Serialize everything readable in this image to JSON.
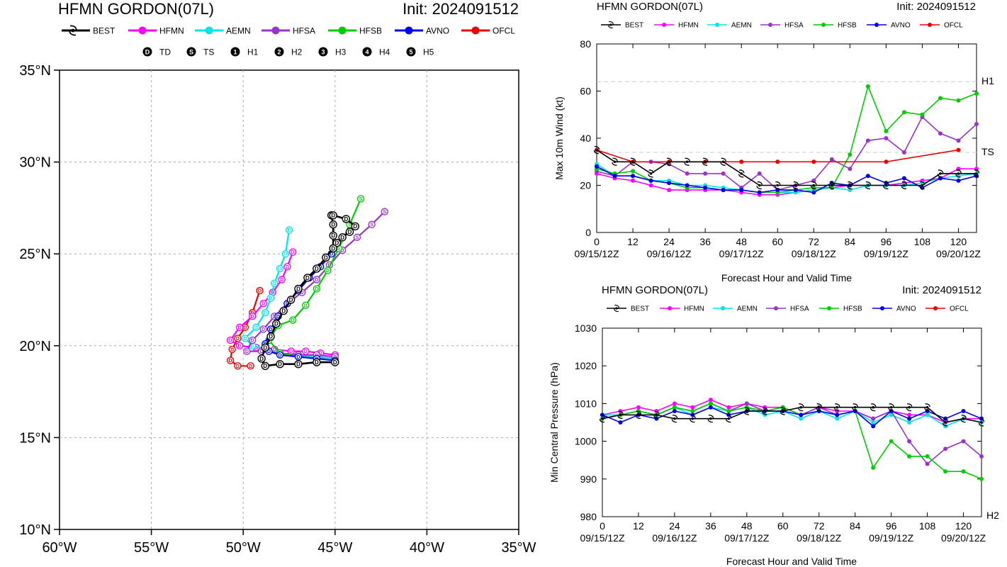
{
  "colors": {
    "BEST": "#000000",
    "HFMN": "#ff00ff",
    "AEMN": "#00e5e5",
    "HFSA": "#9933cc",
    "HFSB": "#00cc00",
    "AVNO": "#0000ee",
    "OFCL": "#ee0000"
  },
  "map": {
    "title": "HFMN GORDON(07L)",
    "init": "Init: 2024091512",
    "lat_labels": [
      "35°N",
      "30°N",
      "25°N",
      "20°N",
      "15°N",
      "10°N"
    ],
    "lon_labels": [
      "60°W",
      "55°W",
      "50°W",
      "45°W",
      "40°W",
      "35°W"
    ],
    "legend_models": [
      "BEST",
      "HFMN",
      "AEMN",
      "HFSA",
      "HFSB",
      "AVNO",
      "OFCL"
    ],
    "legend_categories": [
      {
        "symbol": "D",
        "label": "TD"
      },
      {
        "symbol": "S",
        "label": "TS"
      },
      {
        "symbol": "1",
        "label": "H1"
      },
      {
        "symbol": "2",
        "label": "H2"
      },
      {
        "symbol": "3",
        "label": "H3"
      },
      {
        "symbol": "4",
        "label": "H4"
      },
      {
        "symbol": "5",
        "label": "H5"
      }
    ]
  },
  "wind_panel": {
    "title": "HFMN GORDON(07L)",
    "init": "Init: 2024091512",
    "ylabel": "Max 10m Wind (kt)",
    "xlabel": "Forecast Hour and Valid Time",
    "threshold_labels": [
      "H1",
      "TS"
    ]
  },
  "pressure_panel": {
    "title": "HFMN GORDON(07L)",
    "init": "Init: 2024091512",
    "ylabel": "Min Central Pressure (hPa)",
    "xlabel": "Forecast Hour and Valid Time",
    "threshold_labels": [
      "H2"
    ]
  },
  "chart_data": [
    {
      "type": "line",
      "subtype": "track-map",
      "title": "HFMN GORDON(07L)",
      "xlim": [
        -60,
        -35
      ],
      "ylim": [
        10,
        35
      ],
      "grid": true,
      "series": [
        {
          "name": "BEST",
          "lon": [
            -45.0,
            -46.0,
            -47.0,
            -48.0,
            -48.8,
            -49.0,
            -48.8,
            -48.5,
            -48.2,
            -47.8,
            -47.4,
            -47.0,
            -46.5,
            -46.0,
            -45.5,
            -45.1,
            -45.1,
            -45.1,
            -45.2,
            -45.1,
            -44.4,
            -43.9,
            -44.2,
            -44.6,
            -44.9,
            -45.1
          ],
          "lat": [
            19.1,
            19.1,
            19.0,
            19.0,
            18.9,
            19.3,
            19.9,
            20.5,
            21.2,
            21.9,
            22.5,
            23.1,
            23.7,
            24.2,
            24.8,
            25.3,
            26.0,
            26.6,
            27.1,
            27.1,
            26.9,
            26.5,
            26.2,
            25.9,
            25.6,
            25.3
          ]
        },
        {
          "name": "HFMN",
          "lon": [
            -45.0,
            -45.8,
            -46.6,
            -47.4,
            -48.3,
            -49.3,
            -50.2,
            -50.7,
            -50.2,
            -49.5,
            -48.9,
            -48.4,
            -47.9,
            -47.6,
            -47.3
          ],
          "lat": [
            19.5,
            19.6,
            19.7,
            19.7,
            19.8,
            19.9,
            20.0,
            20.3,
            21.0,
            21.6,
            22.3,
            22.9,
            23.6,
            24.3,
            25.1
          ]
        },
        {
          "name": "AEMN",
          "lon": [
            -45.0,
            -46.0,
            -47.0,
            -48.0,
            -48.8,
            -49.5,
            -49.9,
            -49.3,
            -48.8,
            -48.5,
            -48.3,
            -48.0,
            -47.7,
            -47.5
          ],
          "lat": [
            19.3,
            19.4,
            19.5,
            19.6,
            19.8,
            20.0,
            20.4,
            21.0,
            21.8,
            22.6,
            23.4,
            24.2,
            25.0,
            26.3
          ]
        },
        {
          "name": "HFSA",
          "lon": [
            -45.0,
            -46.0,
            -47.0,
            -48.0,
            -49.0,
            -49.8,
            -49.5,
            -48.9,
            -48.3,
            -47.6,
            -46.8,
            -46.0,
            -45.3,
            -44.6,
            -43.8,
            -43.0,
            -42.3
          ],
          "lat": [
            19.4,
            19.5,
            19.5,
            19.6,
            19.7,
            19.7,
            20.3,
            20.9,
            21.6,
            22.3,
            22.9,
            23.6,
            24.4,
            25.2,
            25.9,
            26.6,
            27.3
          ]
        },
        {
          "name": "HFSB",
          "lon": [
            -45.0,
            -46.0,
            -47.0,
            -48.0,
            -48.6,
            -48.1,
            -47.3,
            -46.6,
            -46.0,
            -45.4,
            -44.8,
            -44.2,
            -43.6
          ],
          "lat": [
            19.2,
            19.3,
            19.4,
            19.6,
            20.3,
            21.1,
            21.4,
            22.2,
            23.1,
            24.1,
            25.3,
            26.6,
            28.0
          ]
        },
        {
          "name": "AVNO",
          "lon": [
            -45.0,
            -46.0,
            -47.0,
            -48.0,
            -48.6,
            -48.8,
            -48.5,
            -48.1,
            -47.6,
            -47.0,
            -46.4,
            -45.8,
            -45.2
          ],
          "lat": [
            19.2,
            19.3,
            19.4,
            19.5,
            19.7,
            20.1,
            20.9,
            21.6,
            22.3,
            23.0,
            23.7,
            24.3,
            25.0
          ]
        },
        {
          "name": "OFCL",
          "lon": [
            -49.6,
            -50.3,
            -50.7,
            -50.6,
            -50.3,
            -49.9,
            -49.5,
            -49.1
          ],
          "lat": [
            18.9,
            18.9,
            19.2,
            19.8,
            20.4,
            21.0,
            21.8,
            23.0
          ]
        }
      ],
      "category_symbols": [
        "D",
        "S",
        "1",
        "2",
        "3",
        "4",
        "5"
      ],
      "category_labels": [
        "TD",
        "TS",
        "H1",
        "H2",
        "H3",
        "H4",
        "H5"
      ]
    },
    {
      "type": "line",
      "title": "HFMN GORDON(07L)",
      "xlabel": "Forecast Hour and Valid Time",
      "ylabel": "Max 10m Wind (kt)",
      "xlim": [
        0,
        126
      ],
      "ylim": [
        0,
        80
      ],
      "xticks": [
        0,
        12,
        24,
        36,
        48,
        60,
        72,
        84,
        96,
        108,
        120
      ],
      "xdate_ticks": [
        {
          "x": 0,
          "label": "09/15/12Z"
        },
        {
          "x": 24,
          "label": "09/16/12Z"
        },
        {
          "x": 48,
          "label": "09/17/12Z"
        },
        {
          "x": 72,
          "label": "09/18/12Z"
        },
        {
          "x": 96,
          "label": "09/19/12Z"
        },
        {
          "x": 120,
          "label": "09/20/12Z"
        }
      ],
      "yticks": [
        0,
        20,
        40,
        60,
        80
      ],
      "thresholds": [
        {
          "y": 64,
          "label": "H1"
        },
        {
          "y": 34,
          "label": "TS"
        }
      ],
      "series": [
        {
          "name": "BEST",
          "x": [
            0,
            6,
            12,
            18,
            24,
            30,
            36,
            42,
            48,
            54,
            60,
            66,
            72,
            78,
            84,
            90,
            96,
            102,
            108,
            114,
            120,
            126
          ],
          "y": [
            35,
            30,
            30,
            25,
            30,
            30,
            30,
            30,
            25,
            20,
            20,
            20,
            20,
            20,
            20,
            20,
            20,
            20,
            20,
            25,
            25,
            25
          ]
        },
        {
          "name": "HFMN",
          "x": [
            0,
            6,
            12,
            18,
            24,
            30,
            36,
            42,
            48,
            54,
            60,
            66,
            72,
            78,
            84,
            90,
            96,
            102,
            108,
            114,
            120,
            126
          ],
          "y": [
            25,
            23,
            22,
            20,
            18,
            18,
            18,
            18,
            17,
            16,
            16,
            17,
            18,
            19,
            20,
            20,
            20,
            21,
            22,
            23,
            27,
            27
          ]
        },
        {
          "name": "AEMN",
          "x": [
            0,
            6,
            12,
            18,
            24,
            30,
            36,
            42,
            48,
            54,
            60,
            66,
            72,
            78,
            84,
            90,
            96,
            102,
            108,
            114,
            120,
            126
          ],
          "y": [
            29,
            24,
            24,
            22,
            22,
            20,
            20,
            19,
            18,
            17,
            17,
            17,
            18,
            19,
            18,
            20,
            20,
            20,
            21,
            23,
            24,
            25
          ]
        },
        {
          "name": "HFSA",
          "x": [
            0,
            6,
            12,
            18,
            24,
            30,
            36,
            42,
            48,
            54,
            60,
            66,
            72,
            78,
            84,
            90,
            96,
            102,
            108,
            114,
            120,
            126
          ],
          "y": [
            26,
            24,
            30,
            30,
            29,
            25,
            25,
            25,
            19,
            25,
            18,
            20,
            22,
            31,
            27,
            39,
            40,
            34,
            49,
            42,
            39,
            46
          ]
        },
        {
          "name": "HFSB",
          "x": [
            0,
            6,
            12,
            18,
            24,
            30,
            36,
            42,
            48,
            54,
            60,
            66,
            72,
            78,
            84,
            90,
            96,
            102,
            108,
            114,
            120,
            126
          ],
          "y": [
            27,
            25,
            26,
            22,
            21,
            19,
            19,
            18,
            18,
            17,
            17,
            18,
            19,
            19,
            33,
            62,
            43,
            51,
            50,
            57,
            56,
            59
          ]
        },
        {
          "name": "AVNO",
          "x": [
            0,
            6,
            12,
            18,
            24,
            30,
            36,
            42,
            48,
            54,
            60,
            66,
            72,
            78,
            84,
            90,
            96,
            102,
            108,
            114,
            120,
            126
          ],
          "y": [
            28,
            24,
            24,
            22,
            21,
            20,
            19,
            18,
            18,
            17,
            18,
            18,
            17,
            21,
            20,
            24,
            21,
            23,
            19,
            23,
            22,
            24
          ]
        },
        {
          "name": "OFCL",
          "x": [
            0,
            12,
            24,
            36,
            48,
            60,
            72,
            96,
            120
          ],
          "y": [
            35,
            30,
            30,
            30,
            30,
            30,
            30,
            30,
            35
          ]
        }
      ]
    },
    {
      "type": "line",
      "title": "HFMN GORDON(07L)",
      "xlabel": "Forecast Hour and Valid Time",
      "ylabel": "Min Central Pressure (hPa)",
      "xlim": [
        0,
        126
      ],
      "ylim": [
        980,
        1030
      ],
      "xticks": [
        0,
        12,
        24,
        36,
        48,
        60,
        72,
        84,
        96,
        108,
        120
      ],
      "xdate_ticks": [
        {
          "x": 0,
          "label": "09/15/12Z"
        },
        {
          "x": 24,
          "label": "09/16/12Z"
        },
        {
          "x": 48,
          "label": "09/17/12Z"
        },
        {
          "x": 72,
          "label": "09/18/12Z"
        },
        {
          "x": 96,
          "label": "09/19/12Z"
        },
        {
          "x": 120,
          "label": "09/20/12Z"
        }
      ],
      "yticks": [
        980,
        990,
        1000,
        1010,
        1020,
        1030
      ],
      "thresholds": [
        {
          "y": 980,
          "label": "H2"
        }
      ],
      "series": [
        {
          "name": "BEST",
          "x": [
            0,
            6,
            12,
            18,
            24,
            30,
            36,
            42,
            48,
            54,
            60,
            66,
            72,
            78,
            84,
            90,
            96,
            102,
            108,
            114,
            120,
            126
          ],
          "y": [
            1006,
            1007,
            1007,
            1007,
            1006,
            1006,
            1006,
            1006,
            1008,
            1008,
            1008,
            1009,
            1009,
            1009,
            1009,
            1009,
            1009,
            1009,
            1009,
            1005,
            1006,
            1005
          ]
        },
        {
          "name": "HFMN",
          "x": [
            0,
            6,
            12,
            18,
            24,
            30,
            36,
            42,
            48,
            54,
            60,
            66,
            72,
            78,
            84,
            90,
            96,
            102,
            108,
            114,
            120,
            126
          ],
          "y": [
            1007,
            1008,
            1009,
            1008,
            1010,
            1009,
            1011,
            1009,
            1010,
            1009,
            1009,
            1007,
            1009,
            1008,
            1008,
            1006,
            1008,
            1007,
            1007,
            1005,
            1006,
            1006
          ]
        },
        {
          "name": "AEMN",
          "x": [
            0,
            6,
            12,
            18,
            24,
            30,
            36,
            42,
            48,
            54,
            60,
            66,
            72,
            78,
            84,
            90,
            96,
            102,
            108,
            114,
            120,
            126
          ],
          "y": [
            1007,
            1007,
            1008,
            1007,
            1009,
            1007,
            1009,
            1008,
            1009,
            1007,
            1008,
            1006,
            1008,
            1006,
            1008,
            1005,
            1007,
            1005,
            1007,
            1004,
            1006,
            1005
          ]
        },
        {
          "name": "HFSA",
          "x": [
            0,
            6,
            12,
            18,
            24,
            30,
            36,
            42,
            48,
            54,
            60,
            66,
            72,
            78,
            84,
            90,
            96,
            102,
            108,
            114,
            120,
            126
          ],
          "y": [
            1006,
            1007,
            1008,
            1007,
            1009,
            1008,
            1010,
            1008,
            1010,
            1008,
            1009,
            1007,
            1009,
            1007,
            1008,
            1006,
            1008,
            1000,
            994,
            998,
            1000,
            996
          ]
        },
        {
          "name": "HFSB",
          "x": [
            0,
            6,
            12,
            18,
            24,
            30,
            36,
            42,
            48,
            54,
            60,
            66,
            72,
            78,
            84,
            90,
            96,
            102,
            108,
            114,
            120,
            126
          ],
          "y": [
            1006,
            1007,
            1008,
            1007,
            1009,
            1008,
            1010,
            1008,
            1009,
            1008,
            1009,
            1007,
            1008,
            1007,
            1008,
            993,
            1000,
            996,
            996,
            992,
            992,
            990
          ]
        },
        {
          "name": "AVNO",
          "x": [
            0,
            6,
            12,
            18,
            24,
            30,
            36,
            42,
            48,
            54,
            60,
            66,
            72,
            78,
            84,
            90,
            96,
            102,
            108,
            114,
            120,
            126
          ],
          "y": [
            1007,
            1005,
            1007,
            1006,
            1008,
            1007,
            1009,
            1007,
            1008,
            1008,
            1008,
            1007,
            1008,
            1007,
            1008,
            1004,
            1008,
            1006,
            1008,
            1006,
            1008,
            1006
          ]
        }
      ]
    }
  ]
}
